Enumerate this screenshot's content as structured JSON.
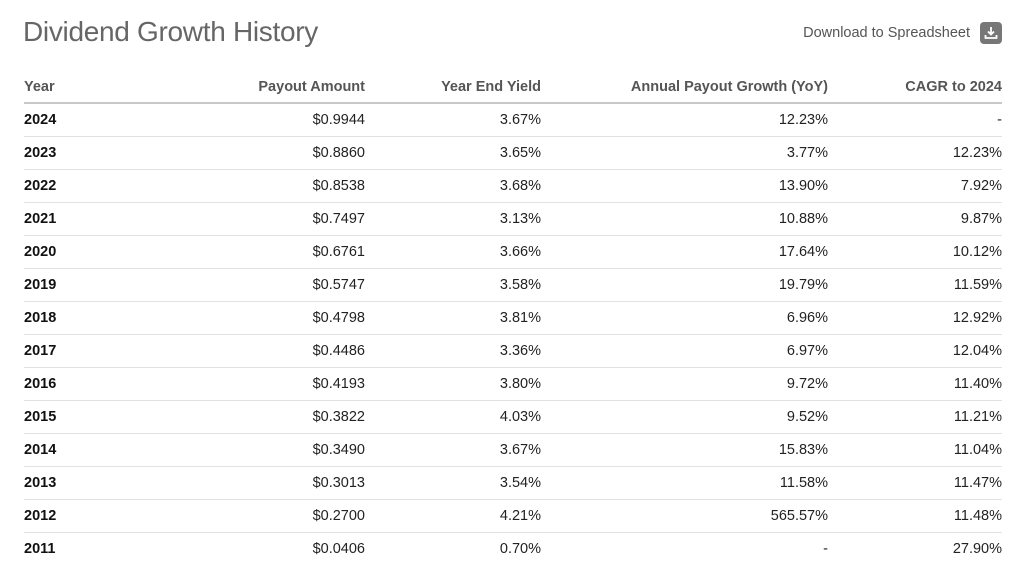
{
  "header": {
    "title": "Dividend Growth History",
    "download_label": "Download to Spreadsheet",
    "download_icon": "download-icon"
  },
  "table": {
    "columns": [
      "Year",
      "Payout Amount",
      "Year End Yield",
      "Annual Payout Growth (YoY)",
      "CAGR to 2024"
    ],
    "rows": [
      [
        "2024",
        "$0.9944",
        "3.67%",
        "12.23%",
        "-"
      ],
      [
        "2023",
        "$0.8860",
        "3.65%",
        "3.77%",
        "12.23%"
      ],
      [
        "2022",
        "$0.8538",
        "3.68%",
        "13.90%",
        "7.92%"
      ],
      [
        "2021",
        "$0.7497",
        "3.13%",
        "10.88%",
        "9.87%"
      ],
      [
        "2020",
        "$0.6761",
        "3.66%",
        "17.64%",
        "10.12%"
      ],
      [
        "2019",
        "$0.5747",
        "3.58%",
        "19.79%",
        "11.59%"
      ],
      [
        "2018",
        "$0.4798",
        "3.81%",
        "6.96%",
        "12.92%"
      ],
      [
        "2017",
        "$0.4486",
        "3.36%",
        "6.97%",
        "12.04%"
      ],
      [
        "2016",
        "$0.4193",
        "3.80%",
        "9.72%",
        "11.40%"
      ],
      [
        "2015",
        "$0.3822",
        "4.03%",
        "9.52%",
        "11.21%"
      ],
      [
        "2014",
        "$0.3490",
        "3.67%",
        "15.83%",
        "11.04%"
      ],
      [
        "2013",
        "$0.3013",
        "3.54%",
        "11.58%",
        "11.47%"
      ],
      [
        "2012",
        "$0.2700",
        "4.21%",
        "565.57%",
        "11.48%"
      ],
      [
        "2011",
        "$0.0406",
        "0.70%",
        "-",
        "27.90%"
      ]
    ]
  }
}
